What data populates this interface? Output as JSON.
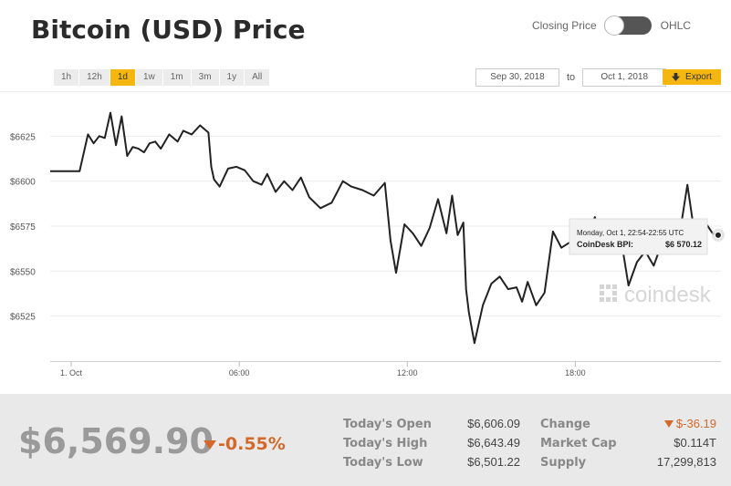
{
  "header": {
    "title": "Bitcoin (USD) Price",
    "toggle_left_label": "Closing Price",
    "toggle_right_label": "OHLC"
  },
  "ranges": [
    "1h",
    "12h",
    "1d",
    "1w",
    "1m",
    "3m",
    "1y",
    "All"
  ],
  "active_range": "1d",
  "date_range": {
    "from": "Sep 30, 2018",
    "to_label": "to",
    "to": "Oct 1, 2018"
  },
  "export_label": "Export",
  "tooltip": {
    "time": "Monday, Oct 1, 22:54-22:55 UTC",
    "label": "CoinDesk BPI:",
    "value": "$6 570.12"
  },
  "watermark": "coindesk",
  "colors": {
    "accent": "#f5b70f",
    "negative": "#d4682b",
    "line": "#222222"
  },
  "chart_data": {
    "type": "line",
    "y_tick_labels": [
      "$6625",
      "$6600",
      "$6575",
      "$6550",
      "$6525"
    ],
    "y_ticks": [
      6625,
      6600,
      6575,
      6550,
      6525
    ],
    "ylim": [
      6500,
      6650
    ],
    "x_tick_labels": [
      "1. Oct",
      "06:00",
      "12:00",
      "18:00"
    ],
    "x_ticks": [
      0,
      6,
      12,
      18
    ],
    "xlim": [
      -0.75,
      23.2
    ],
    "grid": true,
    "series": [
      {
        "x": [
          -0.75,
          0.3,
          0.6,
          0.8,
          1.0,
          1.2,
          1.4,
          1.6,
          1.8,
          2.0,
          2.2,
          2.4,
          2.6,
          2.8,
          3.0,
          3.2,
          3.5,
          3.8,
          4.0,
          4.3,
          4.6,
          4.9,
          5.0,
          5.1,
          5.3,
          5.6,
          5.9,
          6.2,
          6.5,
          6.8,
          7.0,
          7.3,
          7.6,
          7.9,
          8.2,
          8.5,
          8.9,
          9.3,
          9.7,
          10.0,
          10.4,
          10.8,
          11.2,
          11.4,
          11.6,
          11.9,
          12.2,
          12.5,
          12.8,
          13.1,
          13.4,
          13.6,
          13.8,
          14.0,
          14.1,
          14.2,
          14.4,
          14.7,
          15.0,
          15.3,
          15.6,
          15.9,
          16.1,
          16.3,
          16.6,
          16.9,
          17.2,
          17.5,
          17.8,
          18.1,
          18.4,
          18.7,
          19.0,
          19.3,
          19.6,
          19.9,
          20.2,
          20.5,
          20.8,
          21.1,
          21.4,
          21.7,
          22.0,
          22.3,
          22.6,
          22.9,
          23.1
        ],
        "y": [
          6605.5,
          6605.5,
          6626,
          6621,
          6625,
          6624,
          6638,
          6620,
          6636,
          6614,
          6619,
          6618,
          6616,
          6621,
          6622,
          6618,
          6626,
          6622,
          6628,
          6626,
          6631,
          6627,
          6608,
          6601,
          6597,
          6607,
          6608,
          6606,
          6600,
          6598,
          6604,
          6594,
          6600,
          6595,
          6602,
          6591,
          6585,
          6588,
          6600,
          6597,
          6595,
          6592,
          6599,
          6567,
          6549,
          6576,
          6571,
          6564,
          6574,
          6590,
          6571,
          6592,
          6570,
          6577,
          6540,
          6527,
          6510,
          6531,
          6543,
          6547,
          6540,
          6541,
          6533,
          6544,
          6531,
          6538,
          6572,
          6563,
          6566,
          6560,
          6570,
          6580,
          6562,
          6576,
          6571,
          6542,
          6555,
          6561,
          6553,
          6566,
          6560,
          6568,
          6598,
          6566,
          6578,
          6571,
          6570
        ]
      }
    ]
  },
  "summary": {
    "price": "$6,569.90",
    "change_pct": "-0.55%",
    "rows_left": [
      {
        "label": "Today's Open",
        "value": "$6,606.09"
      },
      {
        "label": "Today's High",
        "value": "$6,643.49"
      },
      {
        "label": "Today's Low",
        "value": "$6,501.22"
      }
    ],
    "rows_right": [
      {
        "label": "Change",
        "value": "$-36.19"
      },
      {
        "label": "Market Cap",
        "value": "$0.114T"
      },
      {
        "label": "Supply",
        "value": "17,299,813"
      }
    ]
  }
}
